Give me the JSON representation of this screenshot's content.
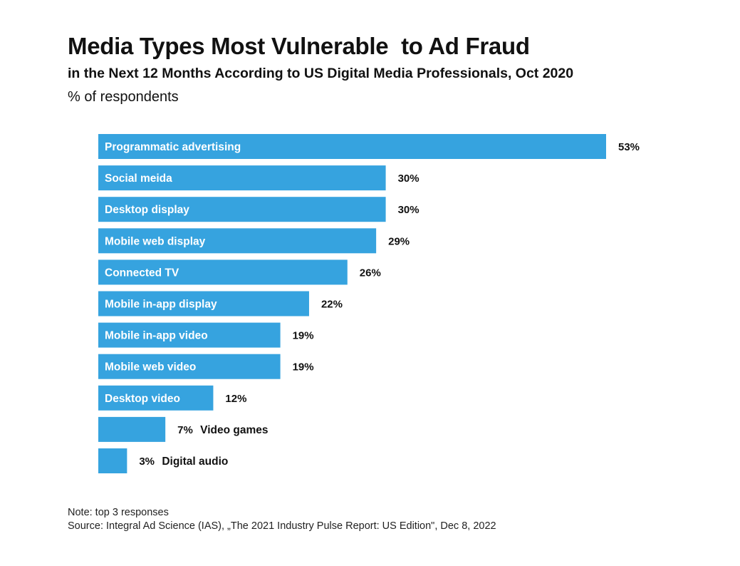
{
  "title": "Media Types Most Vulnerable  to Ad Fraud",
  "subtitle": "in the Next 12 Months According to US Digital Media Professionals, Oct 2020",
  "unit_label": "% of respondents",
  "note": "Note: top 3 responses",
  "source": "Source: Integral Ad Science (IAS), „The 2021 Industry Pulse Report: US Edition\", Dec 8, 2022",
  "colors": {
    "bar": "#36A3DF",
    "label_inside": "#ffffff",
    "label_outside": "#111111"
  },
  "chart_data": {
    "type": "bar",
    "orientation": "horizontal",
    "categories": [
      "Programmatic advertising",
      "Social meida",
      "Desktop display",
      "Mobile web display",
      "Connected TV",
      "Mobile in-app display",
      "Mobile in-app video",
      "Mobile web video",
      "Desktop video",
      "Video games",
      "Digital audio"
    ],
    "values": [
      53,
      30,
      30,
      29,
      26,
      22,
      19,
      19,
      12,
      7,
      3
    ],
    "value_labels": [
      "53%",
      "30%",
      "30%",
      "29%",
      "26%",
      "22%",
      "19%",
      "19%",
      "12%",
      "7%",
      "3%"
    ],
    "xlim": [
      0,
      53
    ],
    "grid": false,
    "legend": "none"
  }
}
